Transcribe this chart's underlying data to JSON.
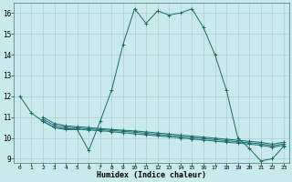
{
  "title": "",
  "xlabel": "Humidex (Indice chaleur)",
  "background_color": "#c8eaea",
  "grid_color": "#b0cccc",
  "line_color": "#1a6b6b",
  "xlim": [
    -0.5,
    23.5
  ],
  "ylim": [
    8.8,
    16.5
  ],
  "ytick_values": [
    9,
    10,
    11,
    12,
    13,
    14,
    15,
    16
  ],
  "lines": [
    {
      "x": [
        0,
        1,
        2,
        3,
        4,
        5,
        6,
        7,
        8,
        9,
        10,
        11,
        12,
        13,
        14,
        15,
        16,
        17,
        18,
        19,
        20,
        21,
        22,
        23
      ],
      "y": [
        12.0,
        11.2,
        10.8,
        10.5,
        10.4,
        10.4,
        9.4,
        10.8,
        12.3,
        14.5,
        16.2,
        15.5,
        16.1,
        15.9,
        16.0,
        16.2,
        15.3,
        14.0,
        12.3,
        10.0,
        9.5,
        8.9,
        9.0,
        9.6
      ]
    },
    {
      "x": [
        2,
        3,
        4,
        5,
        6,
        7,
        8,
        9,
        10,
        11,
        12,
        13,
        14,
        15,
        16,
        17,
        18,
        19,
        20,
        21,
        22,
        23
      ],
      "y": [
        10.8,
        10.5,
        10.45,
        10.42,
        10.38,
        10.35,
        10.3,
        10.25,
        10.2,
        10.15,
        10.1,
        10.05,
        10.0,
        9.95,
        9.9,
        9.85,
        9.8,
        9.75,
        9.7,
        9.65,
        9.55,
        9.65
      ]
    },
    {
      "x": [
        2,
        3,
        4,
        5,
        6,
        7,
        8,
        9,
        10,
        11,
        12,
        13,
        14,
        15,
        16,
        17,
        18,
        19,
        20,
        21,
        22,
        23
      ],
      "y": [
        10.9,
        10.6,
        10.52,
        10.48,
        10.44,
        10.4,
        10.36,
        10.32,
        10.28,
        10.22,
        10.17,
        10.12,
        10.07,
        10.02,
        9.97,
        9.92,
        9.87,
        9.82,
        9.77,
        9.72,
        9.62,
        9.72
      ]
    },
    {
      "x": [
        2,
        3,
        4,
        5,
        6,
        7,
        8,
        9,
        10,
        11,
        12,
        13,
        14,
        15,
        16,
        17,
        18,
        19,
        20,
        21,
        22,
        23
      ],
      "y": [
        11.0,
        10.7,
        10.58,
        10.54,
        10.5,
        10.45,
        10.41,
        10.37,
        10.34,
        10.29,
        10.24,
        10.19,
        10.14,
        10.09,
        10.04,
        9.99,
        9.94,
        9.89,
        9.84,
        9.79,
        9.7,
        9.8
      ]
    }
  ]
}
